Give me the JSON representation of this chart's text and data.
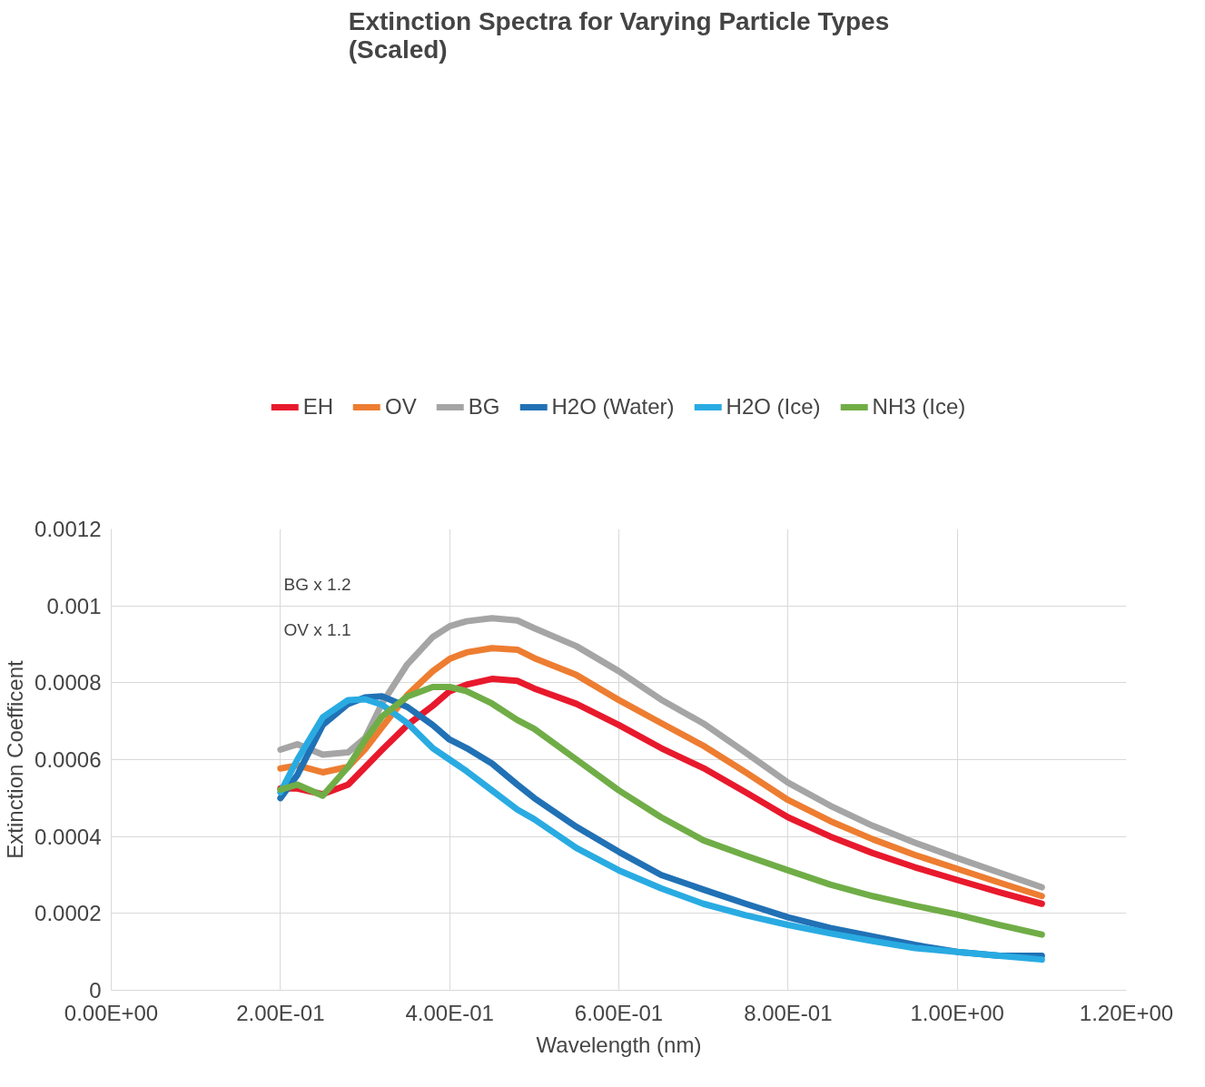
{
  "chart_data": {
    "type": "line",
    "title": "Extinction Spectra for Varying Particle Types (Scaled)",
    "xlabel": "Wavelength (nm)",
    "ylabel": "Extinction Coefficent",
    "x": [
      0.2,
      0.22,
      0.25,
      0.28,
      0.3,
      0.32,
      0.35,
      0.38,
      0.4,
      0.42,
      0.45,
      0.48,
      0.5,
      0.55,
      0.6,
      0.65,
      0.7,
      0.75,
      0.8,
      0.85,
      0.9,
      0.95,
      1.0,
      1.05,
      1.1
    ],
    "series": [
      {
        "name": "EH",
        "color": "#e8192c",
        "values": [
          0.000525,
          0.000525,
          0.00051,
          0.000535,
          0.00058,
          0.000625,
          0.00069,
          0.00074,
          0.000778,
          0.000795,
          0.00081,
          0.000805,
          0.000785,
          0.000745,
          0.00069,
          0.00063,
          0.000578,
          0.000515,
          0.00045,
          0.0004,
          0.000357,
          0.00032,
          0.000287,
          0.000255,
          0.000225
        ]
      },
      {
        "name": "OV",
        "color": "#ed7d31",
        "values": [
          0.000577,
          0.000585,
          0.000567,
          0.000581,
          0.000627,
          0.000684,
          0.000768,
          0.00083,
          0.000862,
          0.000879,
          0.00089,
          0.000886,
          0.000864,
          0.00082,
          0.000755,
          0.000695,
          0.000636,
          0.000567,
          0.000495,
          0.00044,
          0.000393,
          0.000352,
          0.000316,
          0.00028,
          0.000245
        ]
      },
      {
        "name": "BG",
        "color": "#a5a5a5",
        "values": [
          0.000626,
          0.00064,
          0.000613,
          0.000619,
          0.000656,
          0.000746,
          0.000848,
          0.000919,
          0.000947,
          0.00096,
          0.000968,
          0.000962,
          0.000942,
          0.000895,
          0.00083,
          0.000756,
          0.000694,
          0.000618,
          0.00054,
          0.00048,
          0.000428,
          0.000384,
          0.000344,
          0.000306,
          0.000268
        ]
      },
      {
        "name": "H2O (Water)",
        "color": "#2171b5",
        "values": [
          0.0005,
          0.00056,
          0.00069,
          0.000745,
          0.000762,
          0.000765,
          0.000737,
          0.00069,
          0.000652,
          0.00063,
          0.00059,
          0.000535,
          0.0005,
          0.000425,
          0.00036,
          0.0003,
          0.000262,
          0.000225,
          0.00019,
          0.000162,
          0.00014,
          0.000118,
          0.0001,
          9e-05,
          9e-05
        ]
      },
      {
        "name": "H2O (Ice)",
        "color": "#29abe2",
        "values": [
          0.000515,
          0.0006,
          0.00071,
          0.000755,
          0.000757,
          0.000743,
          0.000695,
          0.00063,
          0.0006,
          0.00057,
          0.00052,
          0.00047,
          0.000445,
          0.00037,
          0.000312,
          0.000265,
          0.000225,
          0.000195,
          0.00017,
          0.000148,
          0.000128,
          0.00011,
          0.0001,
          9e-05,
          8e-05
        ]
      },
      {
        "name": "NH3 (Ice)",
        "color": "#70ad47",
        "values": [
          0.000522,
          0.000535,
          0.000506,
          0.000581,
          0.000651,
          0.000712,
          0.000764,
          0.000789,
          0.000789,
          0.000778,
          0.000746,
          0.000703,
          0.00068,
          0.0006,
          0.00052,
          0.00045,
          0.00039,
          0.00035,
          0.000312,
          0.000275,
          0.000245,
          0.00022,
          0.000197,
          0.00017,
          0.000145
        ]
      }
    ],
    "xlim": [
      0,
      1.2
    ],
    "ylim": [
      0,
      0.0012
    ],
    "xticks": [
      {
        "value": 0,
        "label": "0.00E+00"
      },
      {
        "value": 0.2,
        "label": "2.00E-01"
      },
      {
        "value": 0.4,
        "label": "4.00E-01"
      },
      {
        "value": 0.6,
        "label": "6.00E-01"
      },
      {
        "value": 0.8,
        "label": "8.00E-01"
      },
      {
        "value": 1.0,
        "label": "1.00E+00"
      },
      {
        "value": 1.2,
        "label": "1.20E+00"
      }
    ],
    "yticks": [
      0,
      0.0002,
      0.0004,
      0.0006,
      0.0008,
      0.001,
      0.0012
    ],
    "annotations": [
      "BG x 1.2",
      "OV x 1.1"
    ],
    "grid": true,
    "legend": "top"
  }
}
